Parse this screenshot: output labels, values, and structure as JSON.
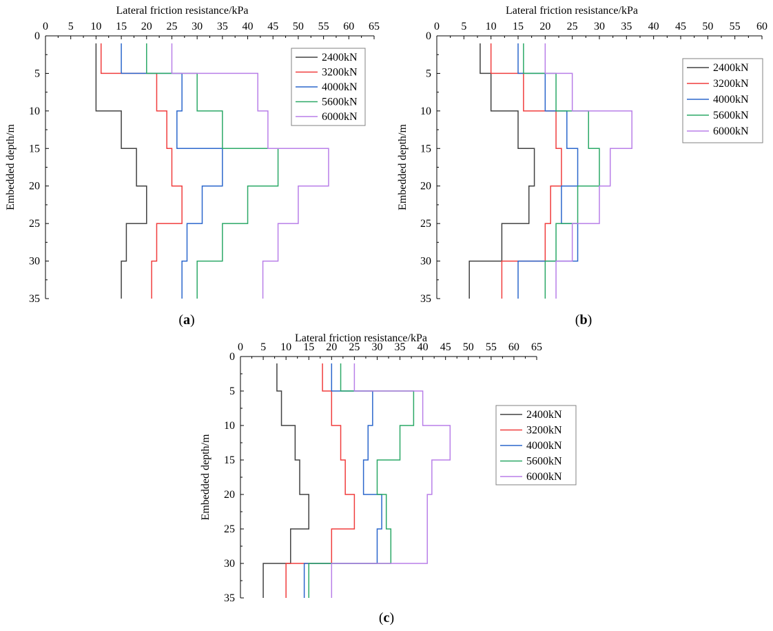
{
  "chart_data": [
    {
      "panel": "a",
      "type": "line",
      "caption": "(a)",
      "caption_letter": "a",
      "title": "",
      "xlabel": "Lateral friction resistance/kPa",
      "ylabel": "Embedded depth/m",
      "xlim": [
        0,
        65
      ],
      "ylim": [
        0,
        35
      ],
      "x_ticks": [
        0,
        5,
        10,
        15,
        20,
        25,
        30,
        35,
        40,
        45,
        50,
        55,
        60,
        65
      ],
      "y_ticks": [
        0,
        5,
        10,
        15,
        20,
        25,
        30,
        35
      ],
      "x_axis_position": "top",
      "y_inverted": true,
      "grid": false,
      "legend_position": "top-right",
      "series": [
        {
          "name": "2400kN",
          "color": "#404040",
          "depth_breaks": [
            1,
            5,
            10,
            15,
            20,
            25,
            30,
            35
          ],
          "friction": [
            10,
            10,
            15,
            18,
            20,
            16,
            15
          ]
        },
        {
          "name": "3200kN",
          "color": "#f03c3c",
          "depth_breaks": [
            1,
            5,
            10,
            15,
            20,
            25,
            30,
            35
          ],
          "friction": [
            11,
            22,
            24,
            25,
            27,
            22,
            21
          ]
        },
        {
          "name": "4000kN",
          "color": "#2a66cc",
          "depth_breaks": [
            1,
            5,
            10,
            15,
            20,
            25,
            30,
            35
          ],
          "friction": [
            15,
            27,
            26,
            35,
            31,
            28,
            27
          ]
        },
        {
          "name": "5600kN",
          "color": "#2aa866",
          "depth_breaks": [
            1,
            5,
            10,
            15,
            20,
            25,
            30,
            35
          ],
          "friction": [
            20,
            30,
            35,
            46,
            40,
            35,
            30
          ]
        },
        {
          "name": "6000kN",
          "color": "#b87ee8",
          "depth_breaks": [
            1,
            5,
            10,
            15,
            20,
            25,
            30,
            35
          ],
          "friction": [
            25,
            42,
            44,
            56,
            50,
            46,
            43
          ]
        }
      ]
    },
    {
      "panel": "b",
      "type": "line",
      "caption": "(b)",
      "caption_letter": "b",
      "title": "",
      "xlabel": "Lateral friction resistance/kPa",
      "ylabel": "Embedded depth/m",
      "xlim": [
        0,
        60
      ],
      "ylim": [
        0,
        35
      ],
      "x_ticks": [
        0,
        5,
        10,
        15,
        20,
        25,
        30,
        35,
        40,
        45,
        50,
        55,
        60
      ],
      "y_ticks": [
        0,
        5,
        10,
        15,
        20,
        25,
        30,
        35
      ],
      "x_axis_position": "top",
      "y_inverted": true,
      "grid": false,
      "legend_position": "top-right",
      "series": [
        {
          "name": "2400kN",
          "color": "#404040",
          "depth_breaks": [
            1,
            5,
            10,
            15,
            20,
            25,
            30,
            35
          ],
          "friction": [
            8,
            10,
            15,
            18,
            17,
            12,
            6
          ]
        },
        {
          "name": "3200kN",
          "color": "#f03c3c",
          "depth_breaks": [
            1,
            5,
            10,
            15,
            20,
            25,
            30,
            35
          ],
          "friction": [
            10,
            16,
            22,
            23,
            21,
            20,
            12
          ]
        },
        {
          "name": "4000kN",
          "color": "#2a66cc",
          "depth_breaks": [
            1,
            5,
            10,
            15,
            20,
            25,
            30,
            35
          ],
          "friction": [
            15,
            20,
            24,
            26,
            23,
            26,
            15
          ]
        },
        {
          "name": "5600kN",
          "color": "#2aa866",
          "depth_breaks": [
            1,
            5,
            10,
            15,
            20,
            25,
            30,
            35
          ],
          "friction": [
            16,
            22,
            28,
            30,
            26,
            22,
            20
          ]
        },
        {
          "name": "6000kN",
          "color": "#b87ee8",
          "depth_breaks": [
            1,
            5,
            10,
            15,
            20,
            25,
            30,
            35
          ],
          "friction": [
            20,
            25,
            36,
            32,
            30,
            25,
            22
          ]
        }
      ]
    },
    {
      "panel": "c",
      "type": "line",
      "caption": "(c)",
      "caption_letter": "c",
      "title": "",
      "xlabel": "Lateral friction resistance/kPa",
      "ylabel": "Embedded depth/m",
      "xlim": [
        0,
        65
      ],
      "ylim": [
        0,
        35
      ],
      "x_ticks": [
        0,
        5,
        10,
        15,
        20,
        25,
        30,
        35,
        40,
        45,
        50,
        55,
        60,
        65
      ],
      "y_ticks": [
        0,
        5,
        10,
        15,
        20,
        25,
        30,
        35
      ],
      "x_axis_position": "top",
      "y_inverted": true,
      "grid": false,
      "legend_position": "right",
      "series": [
        {
          "name": "2400kN",
          "color": "#404040",
          "depth_breaks": [
            1,
            5,
            10,
            15,
            20,
            25,
            30,
            35
          ],
          "friction": [
            8,
            9,
            12,
            13,
            15,
            11,
            5
          ]
        },
        {
          "name": "3200kN",
          "color": "#f03c3c",
          "depth_breaks": [
            1,
            5,
            10,
            15,
            20,
            25,
            30,
            35
          ],
          "friction": [
            18,
            20,
            22,
            23,
            25,
            20,
            10
          ]
        },
        {
          "name": "4000kN",
          "color": "#2a66cc",
          "depth_breaks": [
            1,
            5,
            10,
            15,
            20,
            25,
            30,
            35
          ],
          "friction": [
            20,
            29,
            28,
            27,
            31,
            30,
            14
          ]
        },
        {
          "name": "5600kN",
          "color": "#2aa866",
          "depth_breaks": [
            1,
            5,
            10,
            15,
            20,
            25,
            30,
            35
          ],
          "friction": [
            22,
            38,
            35,
            30,
            32,
            33,
            15
          ]
        },
        {
          "name": "6000kN",
          "color": "#b87ee8",
          "depth_breaks": [
            1,
            5,
            10,
            15,
            20,
            25,
            30,
            35
          ],
          "friction": [
            25,
            40,
            46,
            42,
            41,
            41,
            20
          ]
        }
      ]
    }
  ]
}
